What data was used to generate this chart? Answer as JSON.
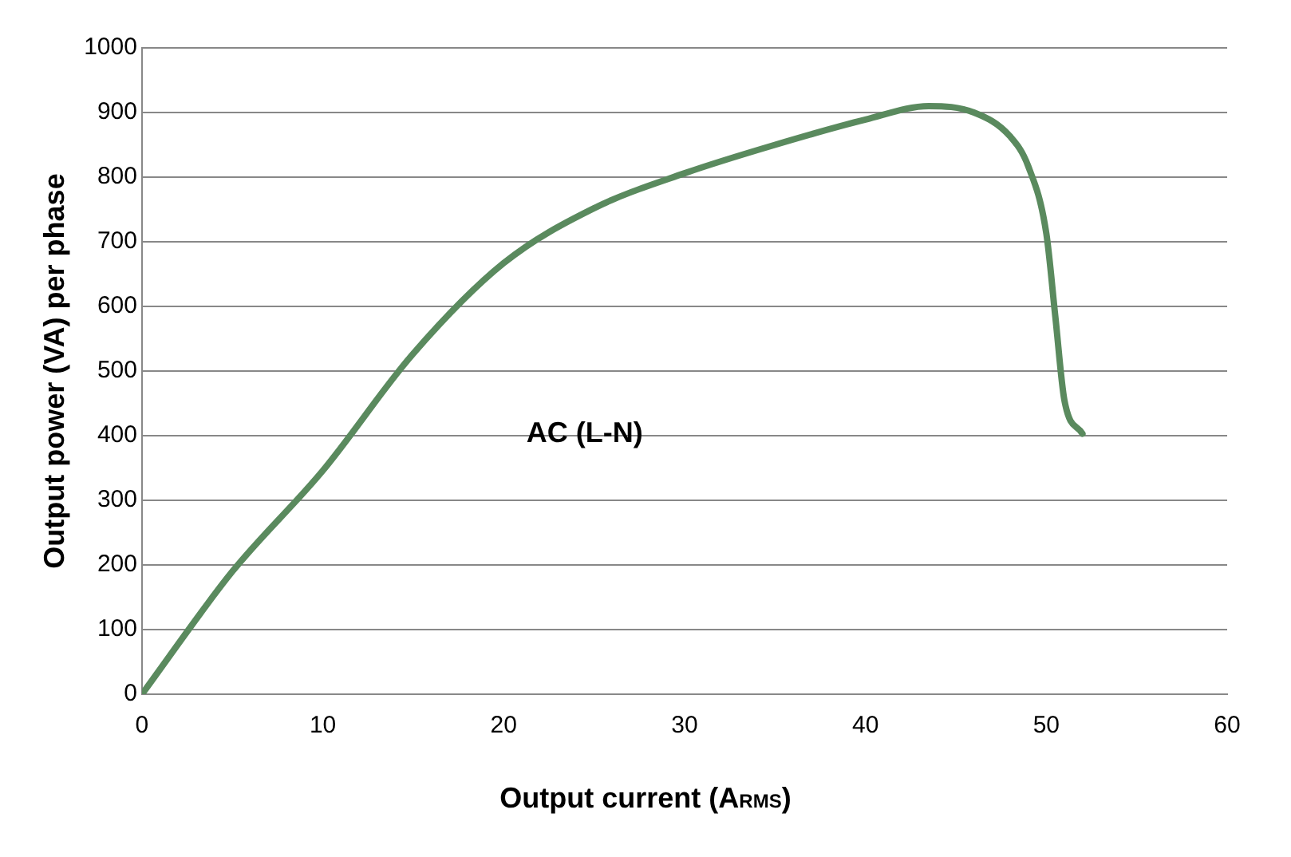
{
  "chart_data": {
    "type": "line",
    "xlabel": "Output current (A$_{RMS}$)",
    "ylabel": "Output power (VA) per phase",
    "xlim": [
      0,
      60
    ],
    "xticks": [
      0,
      10,
      20,
      30,
      40,
      50,
      60
    ],
    "ylim": [
      0,
      1000
    ],
    "yticks": [
      0,
      100,
      200,
      300,
      400,
      500,
      600,
      700,
      800,
      900,
      1000
    ],
    "grid": "y",
    "marker": "none",
    "series": [
      {
        "name": "AC (L-N)",
        "color": "#5a8a5e",
        "x": [
          0,
          5,
          10,
          15,
          20,
          25,
          30,
          35,
          40,
          43.5,
          46,
          48,
          49,
          50,
          50.5,
          51,
          52
        ],
        "values": [
          0,
          190,
          346,
          527,
          667,
          752,
          806,
          850,
          889,
          910,
          900,
          863,
          817,
          713,
          584,
          455,
          403
        ]
      }
    ]
  }
}
